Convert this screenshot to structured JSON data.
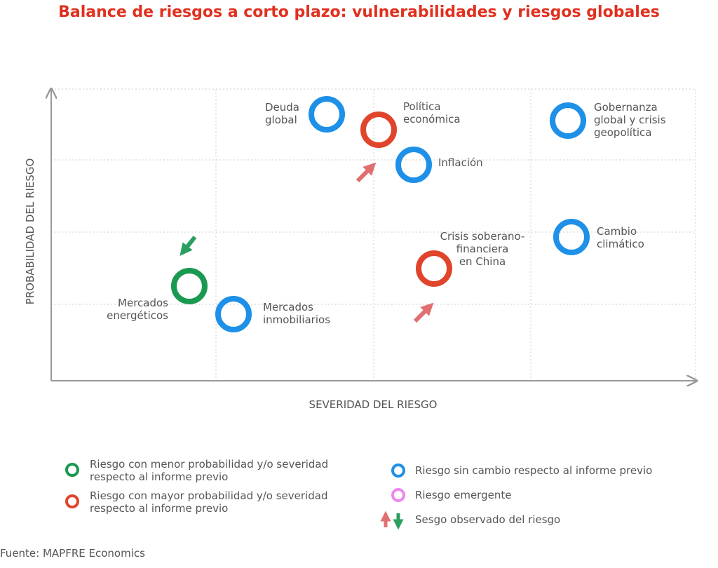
{
  "title": "Balance de riesgos a corto plazo: vulnerabilidades y riesgos globales",
  "y_axis_label": "PROBABILIDAD DEL RIESGO",
  "x_axis_label": "SEVERIDAD DEL RIESGO",
  "nodes": [
    {
      "lines": [
        "Deuda",
        "global"
      ]
    },
    {
      "lines": [
        "Política",
        "económica"
      ]
    },
    {
      "lines": [
        "Inflación"
      ]
    },
    {
      "lines": [
        "Gobernanza",
        "global y crisis",
        "geopolítica"
      ]
    },
    {
      "lines": [
        "Cambio",
        "climático"
      ]
    },
    {
      "lines": [
        "Crisis soberano-",
        "financiera",
        "en China"
      ]
    },
    {
      "lines": [
        "Mercados",
        "energéticos"
      ]
    },
    {
      "lines": [
        "Mercados",
        "inmobiliarios"
      ]
    }
  ],
  "legend": [
    {
      "lines": [
        "Riesgo con menor probabilidad y/o severidad",
        "respecto al informe previo"
      ]
    },
    {
      "lines": [
        "Riesgo con mayor probabilidad y/o severidad",
        "respecto al informe previo"
      ]
    },
    {
      "lines": [
        "Riesgo sin cambio respecto al informe previo"
      ]
    },
    {
      "lines": [
        "Riesgo emergente"
      ]
    },
    {
      "lines": [
        "Sesgo observado del riesgo"
      ]
    }
  ],
  "source": "Fuente: MAPFRE Economics"
}
